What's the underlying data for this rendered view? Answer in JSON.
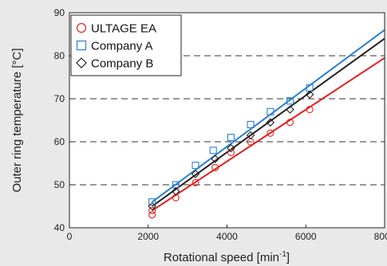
{
  "chart_data": {
    "type": "scatter",
    "title": "",
    "xlabel": "Rotational speed [min",
    "xlabel_sup": "-1",
    "xlabel_tail": "]",
    "ylabel": "Outer ring temperature [°C]",
    "xlim": [
      0,
      8000
    ],
    "ylim": [
      40,
      90
    ],
    "xticks": [
      0,
      2000,
      4000,
      6000,
      8000
    ],
    "yticks": [
      40,
      50,
      60,
      70,
      80,
      90
    ],
    "dashed_gridlines_y": [
      50,
      60,
      70,
      80
    ],
    "legend_position": "top-left",
    "series": [
      {
        "name": "ULTAGE EA",
        "marker": "circle",
        "color": "#e02020",
        "points": [
          [
            2100,
            43
          ],
          [
            2100,
            44
          ],
          [
            2700,
            47
          ],
          [
            3200,
            50.5
          ],
          [
            3700,
            54
          ],
          [
            4100,
            57.5
          ],
          [
            4600,
            60
          ],
          [
            5100,
            62
          ],
          [
            5600,
            64.5
          ],
          [
            6100,
            67.5
          ]
        ],
        "fit_line": [
          [
            2100,
            44
          ],
          [
            8000,
            79.5
          ]
        ]
      },
      {
        "name": "Company A",
        "marker": "square",
        "color": "#2a7fd0",
        "points": [
          [
            2100,
            46
          ],
          [
            2700,
            50
          ],
          [
            3200,
            54.5
          ],
          [
            3650,
            58
          ],
          [
            4100,
            61
          ],
          [
            4600,
            64
          ],
          [
            5100,
            67
          ],
          [
            5600,
            69.5
          ],
          [
            6100,
            72.5
          ]
        ],
        "fit_line": [
          [
            2100,
            46
          ],
          [
            8000,
            86
          ]
        ]
      },
      {
        "name": "Company B",
        "marker": "diamond",
        "color": "#222222",
        "points": [
          [
            2100,
            45
          ],
          [
            2700,
            48.5
          ],
          [
            3200,
            52.5
          ],
          [
            3700,
            56
          ],
          [
            4100,
            58.5
          ],
          [
            4600,
            61.5
          ],
          [
            5100,
            64.5
          ],
          [
            5600,
            67.5
          ],
          [
            6100,
            71
          ]
        ],
        "fit_line": [
          [
            2100,
            45
          ],
          [
            8000,
            84
          ]
        ]
      }
    ]
  }
}
